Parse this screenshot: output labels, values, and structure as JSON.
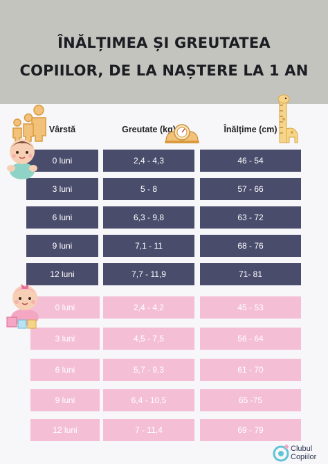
{
  "title": {
    "line1": "ÎNĂLȚIMEA ȘI GREUTATEA",
    "line2": "COPIILOR, DE LA NAȘTERE LA 1 AN"
  },
  "columns": {
    "age": "Vârstă",
    "weight": "Greutate (kg)",
    "height": "Înălțime (cm)"
  },
  "boys": [
    {
      "age": "0 luni",
      "weight": "2,4 - 4,3",
      "height": "46 - 54"
    },
    {
      "age": "3 luni",
      "weight": "5 - 8",
      "height": "57 - 66"
    },
    {
      "age": "6 luni",
      "weight": "6,3 - 9,8",
      "height": "63 - 72"
    },
    {
      "age": "9 luni",
      "weight": "7,1 - 11",
      "height": "68 - 76"
    },
    {
      "age": "12 luni",
      "weight": "7,7 - 11,9",
      "height": "71- 81"
    }
  ],
  "girls": [
    {
      "age": "0 luni",
      "weight": "2,4 - 4,2",
      "height": "45 - 53"
    },
    {
      "age": "3 luni",
      "weight": "4,5 - 7,5",
      "height": "56 - 64"
    },
    {
      "age": "6 luni",
      "weight": "5,7 - 9,3",
      "height": "61 - 70"
    },
    {
      "age": "9 luni",
      "weight": "6,4 - 10,5",
      "height": "65 -75"
    },
    {
      "age": "12 luni",
      "weight": "7 - 11,4",
      "height": "69 - 79"
    }
  ],
  "logo": {
    "line1": "Clubul",
    "line2": "Copiilor"
  },
  "colors": {
    "boys_row": "#4a4c6c",
    "girls_row": "#f4bfd5",
    "header_bg": "#c4c4bf"
  }
}
